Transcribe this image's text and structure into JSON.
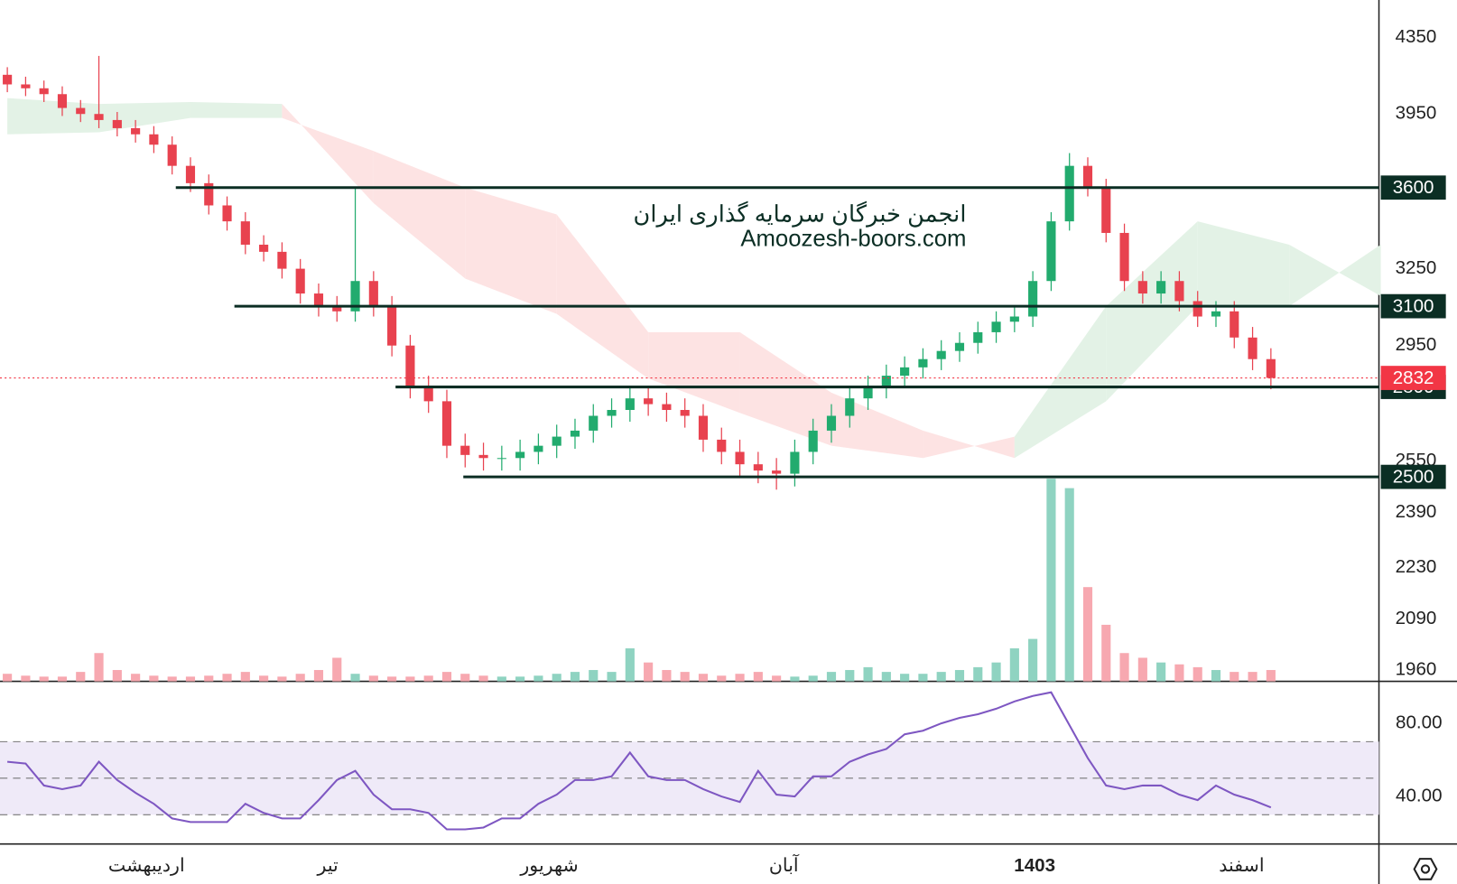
{
  "chart_data": {
    "type": "candlestick",
    "watermark": [
      "انجمن خبرگان سرمایه گذاری ایران",
      "Amoozesh-boors.com"
    ],
    "log_scale": true,
    "ylim": [
      1932,
      4560
    ],
    "yticks": [
      4350,
      3950,
      3250,
      2950,
      2550,
      2390,
      2230,
      2090,
      1960
    ],
    "xlim": [
      -0.4,
      74.9
    ],
    "xticks": [
      {
        "value": 7.6,
        "label": "اردیبهشت"
      },
      {
        "value": 17.5,
        "label": "تیر"
      },
      {
        "value": 29.6,
        "label": "شهریور"
      },
      {
        "value": 42.4,
        "label": "آبان"
      },
      {
        "value": 56.1,
        "label": "1403"
      },
      {
        "value": 67.4,
        "label": "اسفند"
      }
    ],
    "up_color": "#22ab6e",
    "down_color": "#e8424f",
    "open": [
      4150,
      4100,
      4080,
      4050,
      3980,
      3950,
      3920,
      3880,
      3850,
      3800,
      3700,
      3620,
      3520,
      3450,
      3350,
      3320,
      3250,
      3150,
      3100,
      3080,
      3200,
      3100,
      2950,
      2800,
      2750,
      2600,
      2570,
      2560,
      2560,
      2580,
      2600,
      2630,
      2650,
      2700,
      2720,
      2760,
      2740,
      2720,
      2700,
      2620,
      2580,
      2540,
      2520,
      2510,
      2580,
      2650,
      2700,
      2760,
      2800,
      2840,
      2870,
      2900,
      2930,
      2960,
      3000,
      3040,
      3060,
      3200,
      3450,
      3700,
      3600,
      3400,
      3200,
      3150,
      3200,
      3120,
      3060,
      3080,
      2980,
      2900
    ],
    "high": [
      4190,
      4140,
      4120,
      4090,
      4020,
      4250,
      3960,
      3920,
      3890,
      3840,
      3740,
      3660,
      3560,
      3490,
      3390,
      3360,
      3290,
      3190,
      3140,
      3600,
      3240,
      3140,
      2990,
      2840,
      2790,
      2640,
      2610,
      2600,
      2620,
      2640,
      2670,
      2690,
      2740,
      2760,
      2800,
      2800,
      2780,
      2760,
      2740,
      2660,
      2620,
      2580,
      2560,
      2620,
      2690,
      2740,
      2800,
      2840,
      2880,
      2910,
      2940,
      2970,
      3000,
      3040,
      3080,
      3100,
      3240,
      3490,
      3760,
      3740,
      3640,
      3440,
      3240,
      3240,
      3240,
      3160,
      3120,
      3120,
      3020,
      2940
    ],
    "low": [
      4060,
      4040,
      4010,
      3940,
      3910,
      3880,
      3840,
      3810,
      3760,
      3660,
      3580,
      3480,
      3410,
      3310,
      3280,
      3210,
      3110,
      3060,
      3040,
      3040,
      3060,
      2910,
      2760,
      2710,
      2560,
      2530,
      2520,
      2520,
      2520,
      2540,
      2560,
      2590,
      2610,
      2660,
      2680,
      2700,
      2680,
      2660,
      2580,
      2540,
      2500,
      2480,
      2460,
      2470,
      2540,
      2610,
      2660,
      2720,
      2760,
      2800,
      2830,
      2860,
      2890,
      2920,
      2960,
      3000,
      3020,
      3160,
      3410,
      3560,
      3360,
      3160,
      3110,
      3110,
      3080,
      3020,
      3020,
      2940,
      2860,
      2792
    ],
    "close": [
      4100,
      4080,
      4050,
      3980,
      3950,
      3920,
      3880,
      3850,
      3800,
      3700,
      3620,
      3520,
      3450,
      3350,
      3320,
      3250,
      3150,
      3100,
      3080,
      3200,
      3100,
      2950,
      2800,
      2750,
      2600,
      2570,
      2560,
      2560,
      2580,
      2600,
      2630,
      2650,
      2700,
      2720,
      2760,
      2740,
      2720,
      2700,
      2620,
      2580,
      2540,
      2520,
      2510,
      2580,
      2650,
      2700,
      2760,
      2800,
      2840,
      2870,
      2900,
      2930,
      2960,
      3000,
      3040,
      3060,
      3200,
      3450,
      3700,
      3600,
      3400,
      3200,
      3150,
      3200,
      3120,
      3060,
      3080,
      2980,
      2900,
      2832
    ],
    "volume": [
      8,
      6,
      5,
      5,
      10,
      30,
      12,
      8,
      6,
      5,
      5,
      6,
      8,
      10,
      6,
      5,
      8,
      12,
      25,
      8,
      6,
      5,
      5,
      6,
      10,
      8,
      6,
      5,
      5,
      6,
      8,
      10,
      12,
      10,
      35,
      20,
      12,
      10,
      8,
      6,
      8,
      10,
      6,
      5,
      6,
      10,
      12,
      15,
      10,
      8,
      8,
      10,
      12,
      15,
      20,
      35,
      45,
      215,
      205,
      100,
      60,
      30,
      25,
      20,
      18,
      15,
      12,
      10,
      10,
      12
    ],
    "volume_up_color": "#8fd3c1",
    "volume_down_color": "#f7a8b0",
    "cloud": {
      "x": [
        0,
        5,
        10,
        15,
        20,
        25,
        30,
        35,
        40,
        45,
        50,
        55,
        60,
        65,
        70,
        75
      ],
      "span_a": [
        4030,
        4000,
        4010,
        4000,
        3530,
        3210,
        3070,
        2830,
        2710,
        2600,
        2560,
        2630,
        3100,
        3450,
        3350,
        3140
      ],
      "span_b": [
        3850,
        3860,
        3930,
        3930,
        3770,
        3600,
        3480,
        3000,
        3000,
        2780,
        2650,
        2560,
        2750,
        3100,
        3100,
        3350
      ],
      "up_color": "#e3f2e6",
      "down_color": "#fde3e3"
    },
    "levels": [
      {
        "value": 3600,
        "from": 9.2
      },
      {
        "value": 3100,
        "from": 12.4
      },
      {
        "value": 2800,
        "from": 21.2
      },
      {
        "value": 2500,
        "from": 24.9
      }
    ],
    "level_color": "#0b2e24",
    "last_price": {
      "value": 2832,
      "color": "#f23645"
    },
    "rsi": {
      "color": "#7e57c2",
      "band_color": "#efeaf8",
      "ylim": [
        14,
        103
      ],
      "yticks": [
        {
          "value": 80,
          "label": "80.00"
        },
        {
          "value": 40,
          "label": "40.00"
        }
      ],
      "levels": [
        30,
        50,
        70
      ],
      "values": [
        59,
        58,
        46,
        44,
        46,
        59,
        49,
        42,
        36,
        28,
        26,
        26,
        26,
        36,
        31,
        28,
        28,
        38,
        49,
        54,
        41,
        33,
        33,
        31,
        22,
        22,
        23,
        28,
        28,
        36,
        41,
        49,
        49,
        51,
        64,
        51,
        49,
        49,
        44,
        40,
        37,
        54,
        41,
        40,
        51,
        51,
        59,
        63,
        66,
        74,
        76,
        80,
        83,
        85,
        88,
        92,
        95,
        97,
        79,
        61,
        46,
        44,
        46,
        46,
        41,
        38,
        46,
        41,
        38,
        34
      ]
    }
  }
}
